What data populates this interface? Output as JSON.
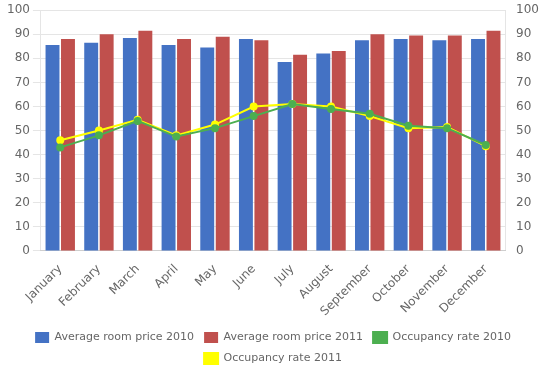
{
  "chart_data": {
    "type": "bar",
    "categories": [
      "January",
      "February",
      "March",
      "April",
      "May",
      "June",
      "July",
      "August",
      "September",
      "October",
      "November",
      "December"
    ],
    "series": [
      {
        "name": "Average room price 2010",
        "type": "bar",
        "color": "#4472C4",
        "values": [
          85.5,
          86.5,
          88.5,
          85.5,
          84.5,
          88.0,
          78.5,
          82.0,
          87.5,
          88.0,
          87.5,
          88.0
        ]
      },
      {
        "name": "Average room price 2011",
        "type": "bar",
        "color": "#C0504D",
        "values": [
          88.0,
          90.0,
          91.5,
          88.0,
          89.0,
          87.5,
          81.5,
          83.0,
          90.0,
          89.5,
          89.5,
          91.5
        ]
      },
      {
        "name": "Occupancy rate 2010",
        "type": "line",
        "color": "#4CAF50",
        "marker": "circle",
        "axis": "y2",
        "values": [
          43.0,
          48.0,
          54.0,
          47.5,
          51.0,
          56.0,
          61.0,
          59.0,
          57.0,
          52.0,
          51.0,
          44.0
        ]
      },
      {
        "name": "Occupancy rate 2011",
        "type": "line",
        "color": "#FFFF00",
        "marker": "circle",
        "axis": "y2",
        "values": [
          46.0,
          50.0,
          54.5,
          48.0,
          52.5,
          60.0,
          61.0,
          60.0,
          56.0,
          51.0,
          51.5,
          43.5
        ]
      }
    ],
    "ylim": [
      0,
      100
    ],
    "yticks": [
      0,
      10,
      20,
      30,
      40,
      50,
      60,
      70,
      80,
      90,
      100
    ],
    "y2lim": [
      0,
      100
    ],
    "y2ticks": [
      0,
      10,
      20,
      30,
      40,
      50,
      60,
      70,
      80,
      90,
      100
    ],
    "grid": true,
    "legend": "bottom"
  }
}
